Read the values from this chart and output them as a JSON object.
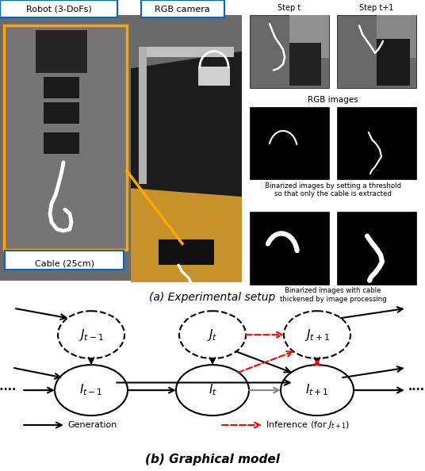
{
  "fig_width": 5.36,
  "fig_height": 5.94,
  "dpi": 100,
  "caption_a": "(a) Experimental setup",
  "caption_b": "(b) Graphical model",
  "label_robot": "Robot (3-DoFs)",
  "label_cable": "Cable (25cm)",
  "label_camera": "RGB camera",
  "label_step_t": "Step t",
  "label_step_t1": "Step t+1",
  "label_rgb": "RGB images",
  "label_binarized": "Binarized images by setting a threshold\nso that only the cable is extracted",
  "label_thickened": "Binarized images with cable\nthickened by image processing",
  "legend_generation": "Generation",
  "legend_inference": "Inference (for $J_{t+1}$)",
  "node_J_labels": [
    "$J_{t-1}$",
    "$J_t$",
    "$J_{t+1}$"
  ],
  "node_I_labels": [
    "$I_{t-1}$",
    "$I_t$",
    "$I_{t+1}$"
  ],
  "background_color": "#ffffff",
  "orange_color": "#FFA500",
  "blue_color": "#0066CC",
  "black_color": "#000000",
  "red_color": "#ff0000",
  "dark_gray": "#404040",
  "mid_gray": "#787878",
  "light_gray": "#aaaaaa"
}
